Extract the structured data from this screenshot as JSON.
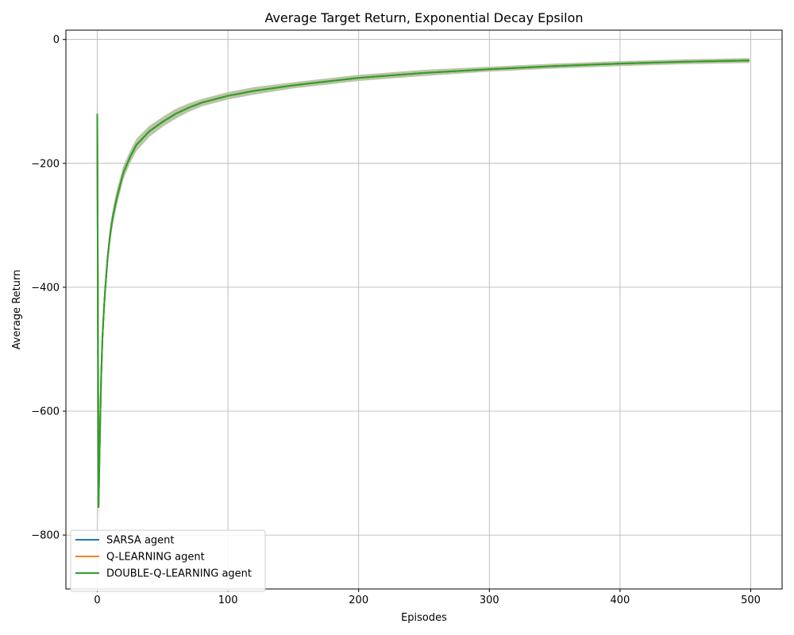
{
  "chart_data": {
    "type": "line",
    "title": "Average Target Return, Exponential Decay Epsilon",
    "xlabel": "Episodes",
    "ylabel": "Average Return",
    "xlim": [
      -24,
      524
    ],
    "ylim": [
      -887,
      15
    ],
    "xticks": [
      0,
      100,
      200,
      300,
      400,
      500
    ],
    "yticks": [
      0,
      -200,
      -400,
      -600,
      -800
    ],
    "grid": true,
    "legend_position": "lower-left",
    "series": [
      {
        "name": "SARSA agent",
        "color": "#1f77b4",
        "x": [
          0,
          1,
          2,
          3,
          4,
          5,
          6,
          8,
          10,
          12,
          15,
          20,
          25,
          30,
          40,
          50,
          60,
          70,
          80,
          100,
          120,
          150,
          200,
          250,
          300,
          350,
          400,
          450,
          499
        ],
        "values": [
          -120,
          -755,
          -640,
          -545,
          -480,
          -440,
          -405,
          -350,
          -312,
          -285,
          -255,
          -215,
          -190,
          -170,
          -148,
          -133,
          -120,
          -110,
          -102,
          -91,
          -83,
          -74,
          -62,
          -54,
          -48,
          -43,
          -39,
          -36,
          -34
        ]
      },
      {
        "name": "Q-LEARNING agent",
        "color": "#ff7f0e",
        "x": [
          0,
          1,
          2,
          3,
          4,
          5,
          6,
          8,
          10,
          12,
          15,
          20,
          25,
          30,
          40,
          50,
          60,
          70,
          80,
          100,
          120,
          150,
          200,
          250,
          300,
          350,
          400,
          450,
          499
        ],
        "values": [
          -120,
          -755,
          -640,
          -545,
          -480,
          -440,
          -405,
          -350,
          -312,
          -285,
          -255,
          -215,
          -190,
          -170,
          -148,
          -133,
          -120,
          -110,
          -102,
          -91,
          -83,
          -74,
          -62,
          -54,
          -48,
          -43,
          -39,
          -36,
          -34
        ]
      },
      {
        "name": "DOUBLE-Q-LEARNING agent",
        "color": "#2ca02c",
        "x": [
          0,
          1,
          2,
          3,
          4,
          5,
          6,
          8,
          10,
          12,
          15,
          20,
          25,
          30,
          40,
          50,
          60,
          70,
          80,
          100,
          120,
          150,
          200,
          250,
          300,
          350,
          400,
          450,
          499
        ],
        "values": [
          -120,
          -755,
          -640,
          -545,
          -480,
          -440,
          -405,
          -350,
          -312,
          -285,
          -255,
          -215,
          -190,
          -170,
          -148,
          -133,
          -120,
          -110,
          -102,
          -91,
          -83,
          -74,
          -62,
          -54,
          -48,
          -43,
          -39,
          -36,
          -34
        ],
        "band_lower": [
          -200,
          -790,
          -670,
          -570,
          -500,
          -460,
          -425,
          -365,
          -327,
          -298,
          -268,
          -226,
          -200,
          -180,
          -157,
          -141,
          -128,
          -117,
          -108,
          -97,
          -89,
          -79,
          -67,
          -59,
          -52,
          -47,
          -43,
          -40,
          -38
        ],
        "band_upper": [
          -120,
          -720,
          -610,
          -520,
          -460,
          -420,
          -385,
          -335,
          -297,
          -272,
          -242,
          -204,
          -180,
          -160,
          -139,
          -125,
          -112,
          -103,
          -96,
          -85,
          -77,
          -69,
          -57,
          -49,
          -44,
          -39,
          -35,
          -32,
          -30
        ]
      }
    ],
    "band_color": "#b5c3a0"
  }
}
